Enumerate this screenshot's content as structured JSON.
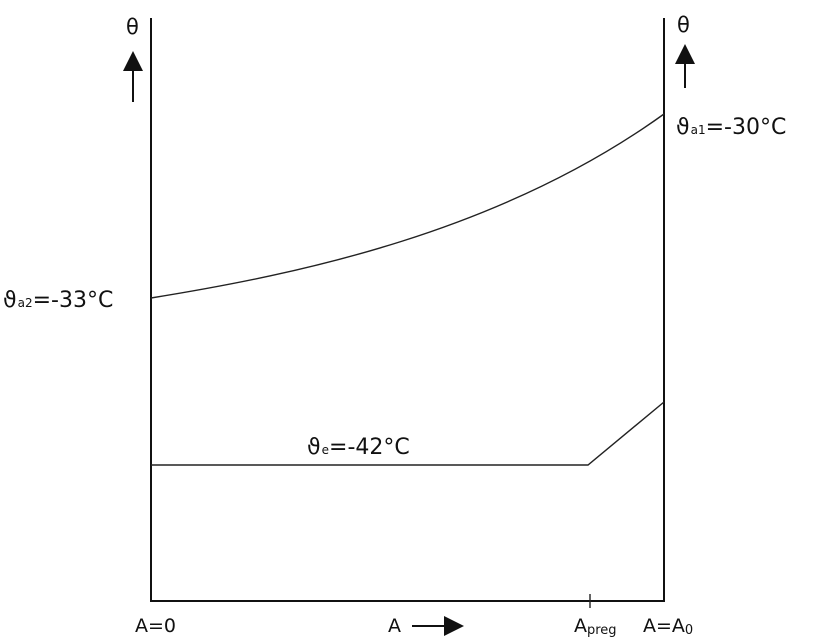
{
  "diagram": {
    "left_axis_label": "θ",
    "right_axis_label": "θ",
    "upper_curve": {
      "left_label": {
        "symbol": "ϑ",
        "sub": "a2",
        "text": "=-33°C"
      },
      "right_label": {
        "symbol": "ϑ",
        "sub": "a1",
        "text": "=-30°C"
      }
    },
    "lower_curve": {
      "label": {
        "symbol": "ϑ",
        "sub": "e",
        "text": "=-42°C"
      }
    },
    "x_axis": {
      "start": "A=0",
      "mid": "A",
      "preg_main": "A",
      "preg_sub": "preg",
      "end_main": "A=A",
      "end_sub": "0"
    }
  }
}
